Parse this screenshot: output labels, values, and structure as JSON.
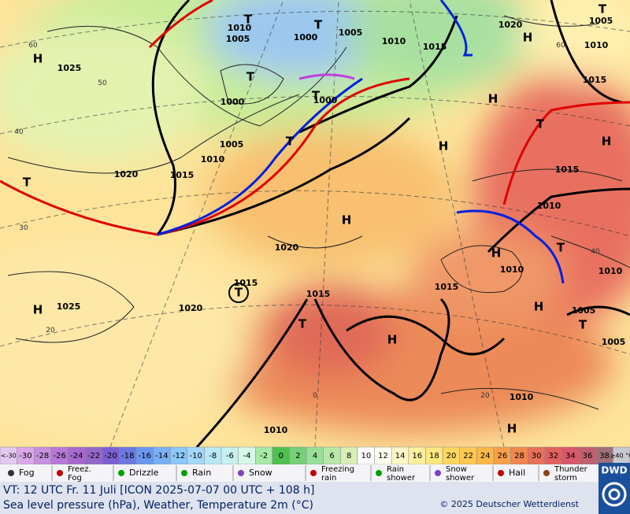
{
  "map": {
    "pressure_labels": [
      "H",
      "1025",
      "T",
      "1000",
      "1005",
      "1010",
      "1015",
      "1020",
      "T",
      "1020",
      "H",
      "T",
      "1015",
      "1025",
      "H",
      "1020",
      "1015",
      "T",
      "H",
      "1015",
      "H",
      "1010",
      "H",
      "T",
      "1005",
      "1005",
      "T",
      "1010",
      "1010",
      "1015",
      "H",
      "T",
      "H",
      "H",
      "1015",
      "1010",
      "1005",
      "T",
      "1020",
      "H",
      "1015",
      "1010",
      "1005",
      "T",
      "1000",
      "T",
      "1000",
      "T",
      "1010",
      "1005",
      "T",
      "1010",
      "H",
      "1010"
    ],
    "grid_labels": [
      "60",
      "50",
      "40",
      "30",
      "20",
      "40",
      "60",
      "0",
      "20"
    ]
  },
  "legend": {
    "temperature_scale": [
      {
        "label": "<-30",
        "color": "#e4c8f0"
      },
      {
        "label": "-30",
        "color": "#d8a8e8"
      },
      {
        "label": "-28",
        "color": "#c890e0"
      },
      {
        "label": "-26",
        "color": "#b878d8"
      },
      {
        "label": "-24",
        "color": "#a868d0"
      },
      {
        "label": "-22",
        "color": "#9468c8"
      },
      {
        "label": "-20",
        "color": "#7a60d0"
      },
      {
        "label": "-18",
        "color": "#6a78e0"
      },
      {
        "label": "-16",
        "color": "#6a98f0"
      },
      {
        "label": "-14",
        "color": "#7ab0f8"
      },
      {
        "label": "-12",
        "color": "#8cc8f8"
      },
      {
        "label": "-10",
        "color": "#a4d8f8"
      },
      {
        "label": "-8",
        "color": "#b8e8f8"
      },
      {
        "label": "-6",
        "color": "#c8f0f0"
      },
      {
        "label": "-4",
        "color": "#d8f8e8"
      },
      {
        "label": "-2",
        "color": "#a8e8a8"
      },
      {
        "label": "0",
        "color": "#50c050"
      },
      {
        "label": "2",
        "color": "#78d078"
      },
      {
        "label": "4",
        "color": "#98e098"
      },
      {
        "label": "6",
        "color": "#b8e8a8"
      },
      {
        "label": "8",
        "color": "#d8f0b8"
      },
      {
        "label": "10",
        "color": "#ffffff"
      },
      {
        "label": "12",
        "color": "#fffff0"
      },
      {
        "label": "14",
        "color": "#fff8c8"
      },
      {
        "label": "16",
        "color": "#fff0a0"
      },
      {
        "label": "18",
        "color": "#ffe880"
      },
      {
        "label": "20",
        "color": "#ffd860"
      },
      {
        "label": "22",
        "color": "#ffc850"
      },
      {
        "label": "24",
        "color": "#ffb848"
      },
      {
        "label": "26",
        "color": "#f8a048"
      },
      {
        "label": "28",
        "color": "#f08850"
      },
      {
        "label": "30",
        "color": "#e87058"
      },
      {
        "label": "32",
        "color": "#e06060"
      },
      {
        "label": "34",
        "color": "#d85868"
      },
      {
        "label": "36",
        "color": "#c06070"
      },
      {
        "label": "38",
        "color": "#a07078"
      },
      {
        "label": "≥40 °C",
        "color": "#c8c8d0"
      }
    ],
    "symbols": [
      "Fog",
      "Freez. Fog",
      "Drizzle",
      "Rain",
      "Snow",
      "Freezing rain",
      "Rain shower",
      "Snow shower",
      "Hail",
      "Thunder storm"
    ],
    "logo": "DWD"
  },
  "footer": {
    "valid_time": "VT: 12 UTC Fr.  11 Juli [ICON 2025-07-07  00 UTC + 108 h]",
    "description": "Sea level pressure (hPa), Weather, Temperature 2m (°C)",
    "copyright": "© 2025 Deutscher Wetterdienst"
  }
}
